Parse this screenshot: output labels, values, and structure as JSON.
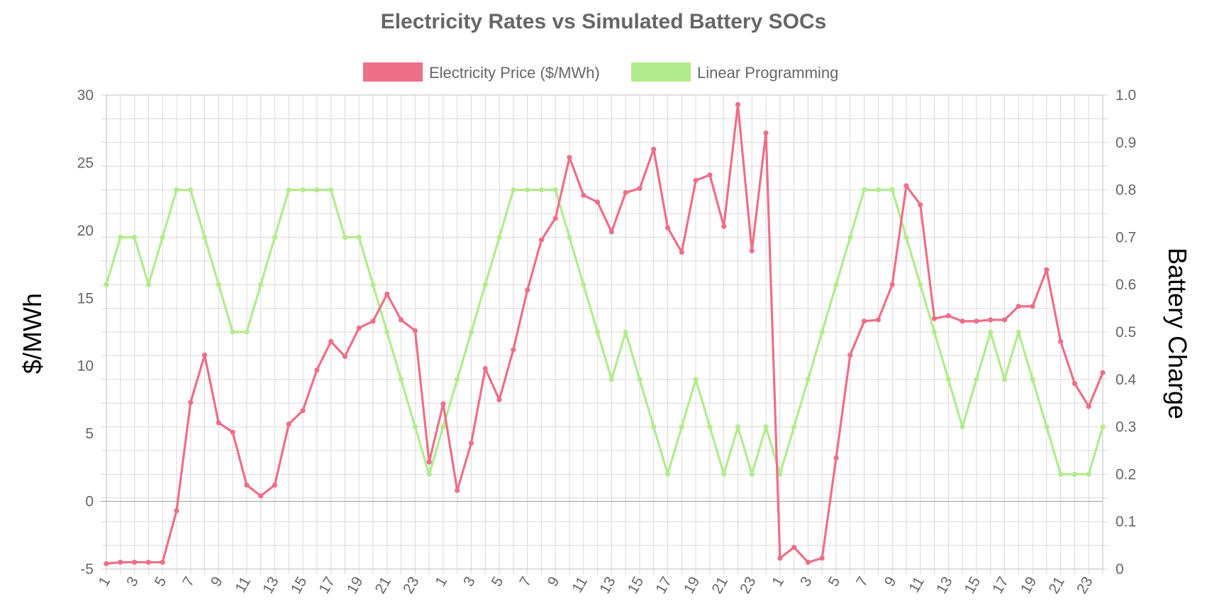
{
  "chart_data": {
    "type": "line",
    "title": "Electricity Rates vs Simulated Battery SOCs",
    "legend_position": "top-center",
    "grid": true,
    "categories": [
      "1",
      "2",
      "3",
      "4",
      "5",
      "6",
      "7",
      "8",
      "9",
      "10",
      "11",
      "12",
      "13",
      "14",
      "15",
      "16",
      "17",
      "18",
      "19",
      "20",
      "21",
      "22",
      "23",
      "24",
      "1",
      "2",
      "3",
      "4",
      "5",
      "6",
      "7",
      "8",
      "9",
      "10",
      "11",
      "12",
      "13",
      "14",
      "15",
      "16",
      "17",
      "18",
      "19",
      "20",
      "21",
      "22",
      "23",
      "24",
      "1",
      "2",
      "3",
      "4",
      "5",
      "6",
      "7",
      "8",
      "9",
      "10",
      "11",
      "12",
      "13",
      "14",
      "15",
      "16",
      "17",
      "18",
      "19",
      "20",
      "21",
      "22",
      "23",
      "24"
    ],
    "y_left": {
      "label": "$/MWh",
      "min": -5,
      "max": 30,
      "ticks": [
        "-5",
        "0",
        "5",
        "10",
        "15",
        "20",
        "25",
        "30"
      ]
    },
    "y_right": {
      "label": "Battery Charge",
      "min": 0,
      "max": 1.0,
      "ticks": [
        "0",
        "0.1",
        "0.2",
        "0.3",
        "0.4",
        "0.5",
        "0.6",
        "0.7",
        "0.8",
        "0.9",
        "1.0"
      ]
    },
    "series": [
      {
        "name": "Electricity Price ($/MWh)",
        "axis": "left",
        "color": "#ee6e88",
        "values": [
          -4.6,
          -4.5,
          -4.5,
          -4.5,
          -4.5,
          -0.7,
          7.3,
          10.8,
          5.8,
          5.1,
          1.2,
          0.4,
          1.2,
          5.7,
          6.7,
          9.7,
          11.8,
          10.7,
          12.8,
          13.3,
          15.3,
          13.4,
          12.6,
          2.9,
          7.2,
          0.8,
          4.3,
          9.8,
          7.5,
          11.2,
          15.6,
          19.3,
          20.9,
          25.4,
          22.6,
          22.1,
          19.9,
          22.8,
          23.1,
          26.0,
          20.2,
          18.4,
          23.7,
          24.1,
          20.3,
          29.3,
          18.5,
          27.2,
          -4.2,
          -3.4,
          -4.5,
          -4.2,
          3.2,
          10.8,
          13.3,
          13.4,
          16.0,
          23.3,
          21.9,
          13.5,
          13.7,
          13.3,
          13.3,
          13.4,
          13.4,
          14.4,
          14.4,
          17.1,
          11.8,
          8.7,
          7.0,
          9.5
        ]
      },
      {
        "name": "Linear Programming",
        "axis": "right",
        "color": "#b2eb8c",
        "values": [
          0.6,
          0.7,
          0.7,
          0.6,
          0.7,
          0.8,
          0.8,
          0.7,
          0.6,
          0.5,
          0.5,
          0.6,
          0.7,
          0.8,
          0.8,
          0.8,
          0.8,
          0.7,
          0.7,
          0.6,
          0.5,
          0.4,
          0.3,
          0.2,
          0.3,
          0.4,
          0.5,
          0.6,
          0.7,
          0.8,
          0.8,
          0.8,
          0.8,
          0.7,
          0.6,
          0.5,
          0.4,
          0.5,
          0.4,
          0.3,
          0.2,
          0.3,
          0.4,
          0.3,
          0.2,
          0.3,
          0.2,
          0.3,
          0.2,
          0.3,
          0.4,
          0.5,
          0.6,
          0.7,
          0.8,
          0.8,
          0.8,
          0.7,
          0.6,
          0.5,
          0.4,
          0.3,
          0.4,
          0.5,
          0.4,
          0.5,
          0.4,
          0.3,
          0.2,
          0.2,
          0.2,
          0.3
        ]
      }
    ]
  }
}
